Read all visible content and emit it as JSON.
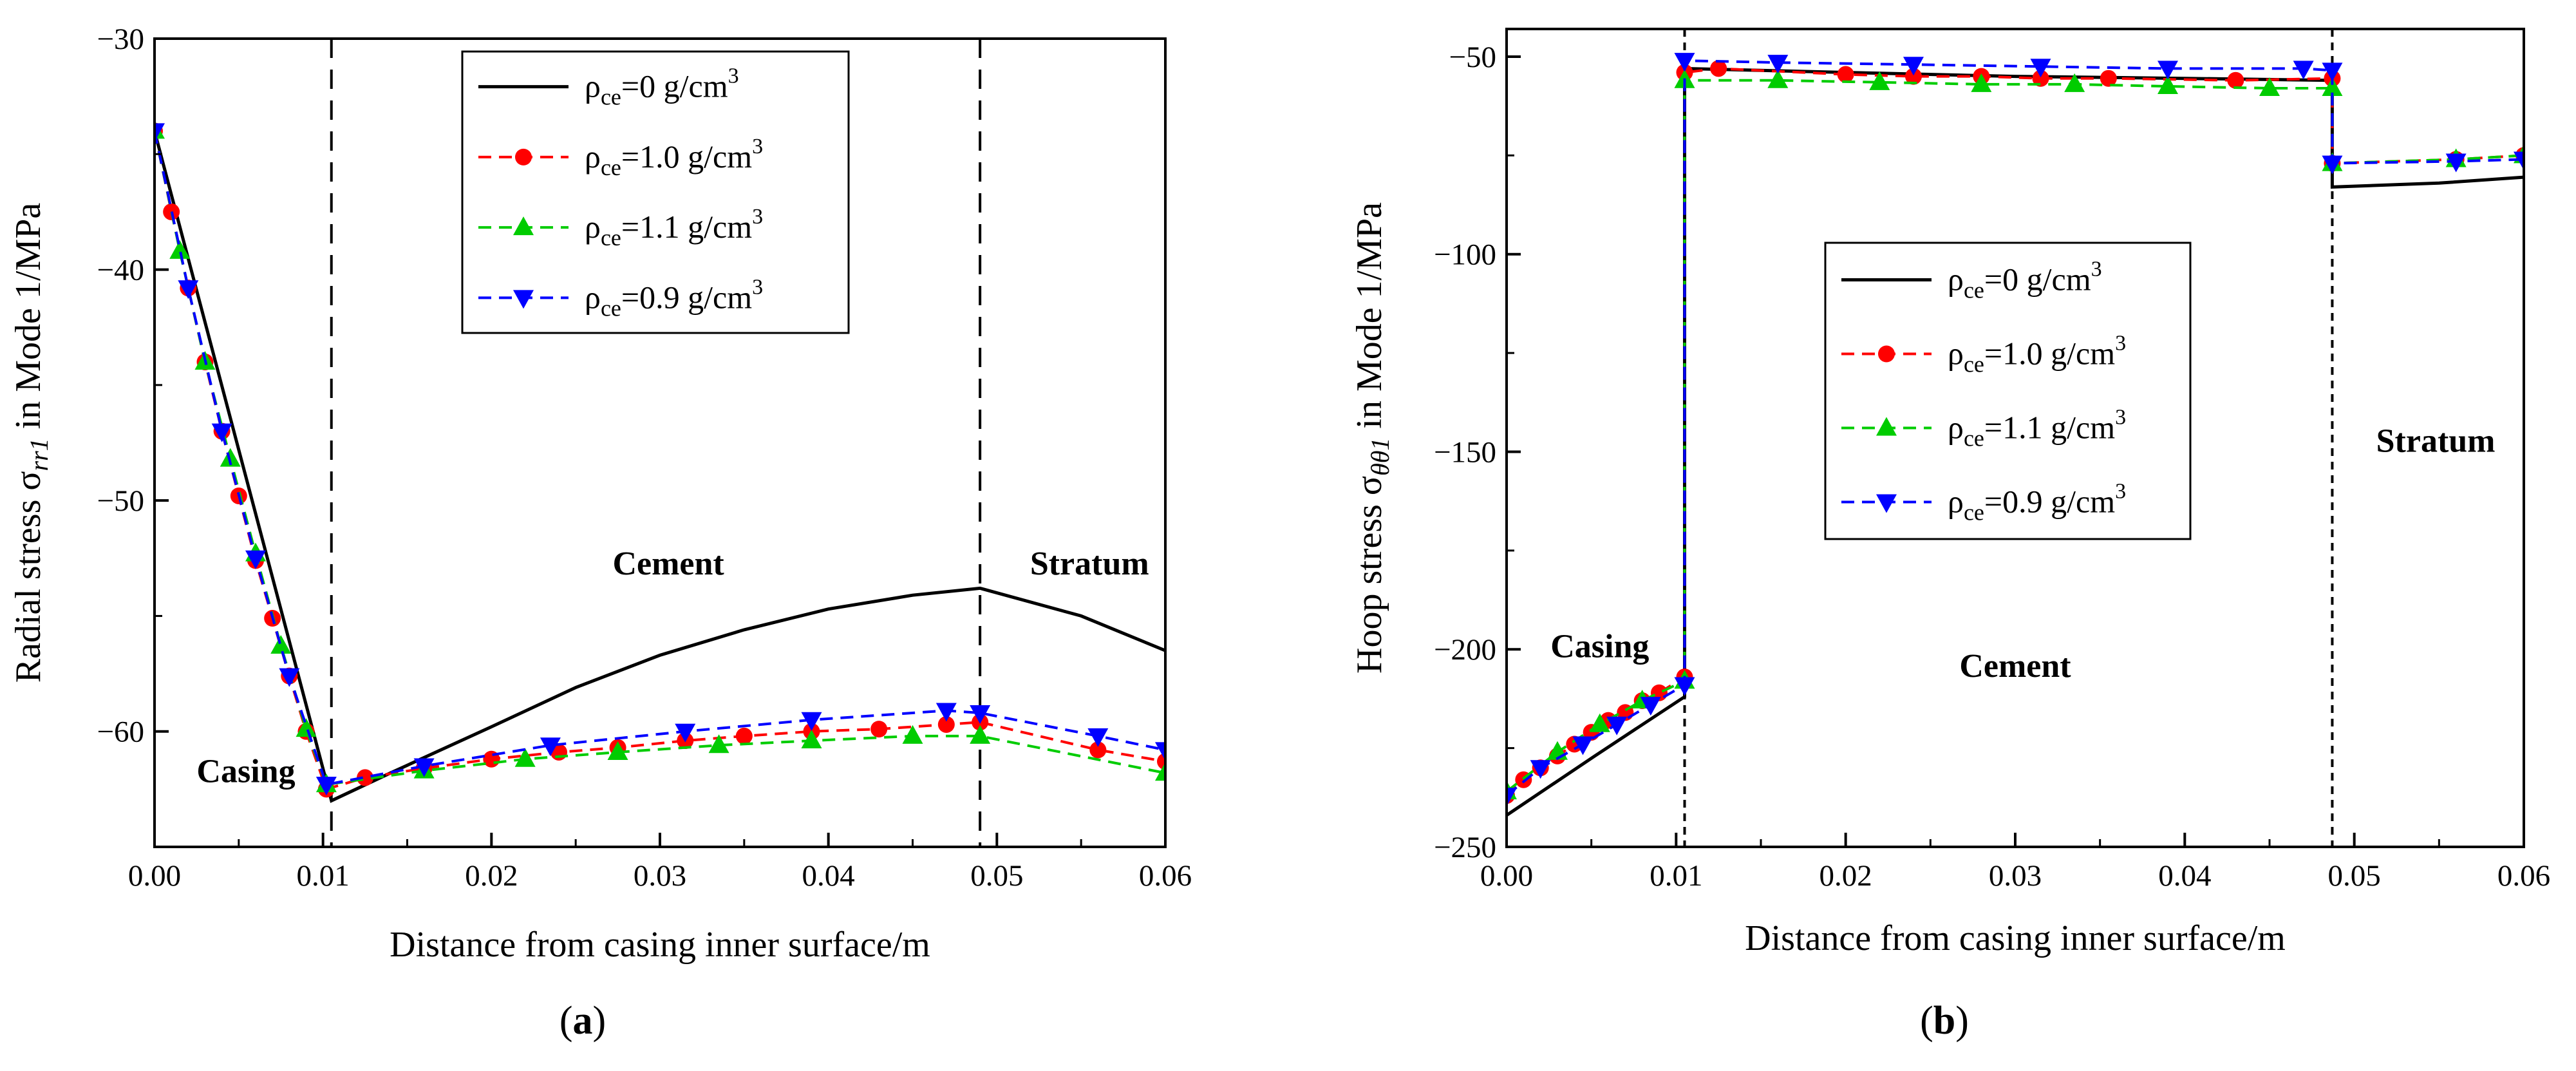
{
  "figure": {
    "panel_labels": [
      "(a)",
      "(b)"
    ],
    "panel_letters": [
      "a",
      "b"
    ]
  },
  "chart_data": [
    {
      "type": "line",
      "panel": "a",
      "ylabel_prefix": "Radial stress σ",
      "ylabel_sub": "rr1",
      "ylabel_suffix": " in Mode 1/MPa",
      "xlabel": "Distance from casing inner surface/m",
      "xlim": [
        0,
        0.06
      ],
      "ylim": [
        -65,
        -30
      ],
      "xticks": [
        0,
        0.01,
        0.02,
        0.03,
        0.04,
        0.05,
        0.06
      ],
      "xtick_labels": [
        "0.00",
        "0.01",
        "0.02",
        "0.03",
        "0.04",
        "0.05",
        "0.06"
      ],
      "yticks": [
        -60,
        -50,
        -40,
        -30
      ],
      "ytick_labels": [
        "−60",
        "−50",
        "−40",
        "−30"
      ],
      "boundaries": [
        0.0105,
        0.049
      ],
      "boundary_style": "long-dash",
      "region_labels": [
        {
          "text": "Casing",
          "x": 0.0025,
          "y": -62.2
        },
        {
          "text": "Cement",
          "x": 0.0305,
          "y": -53.2
        },
        {
          "text": "Stratum",
          "x": 0.0555,
          "y": -53.2
        }
      ],
      "legend": {
        "position": "top-center"
      },
      "series": [
        {
          "name": "0 g/cm",
          "color": "#000000",
          "dash": "solid",
          "marker": "none",
          "x": [
            0,
            0.0105,
            0.014,
            0.02,
            0.025,
            0.03,
            0.035,
            0.04,
            0.045,
            0.049,
            0.055,
            0.06
          ],
          "y": [
            -34,
            -63,
            -61.8,
            -59.8,
            -58.1,
            -56.7,
            -55.6,
            -54.7,
            -54.1,
            -53.8,
            -55.0,
            -56.5
          ]
        },
        {
          "name": "1.0 g/cm",
          "color": "#ff0000",
          "dash": "dashed",
          "marker": "circle",
          "x": [
            0,
            0.001,
            0.002,
            0.003,
            0.004,
            0.005,
            0.006,
            0.007,
            0.008,
            0.009,
            0.0102,
            0.0125,
            0.016,
            0.02,
            0.024,
            0.0275,
            0.0315,
            0.035,
            0.039,
            0.043,
            0.047,
            0.049,
            0.056,
            0.06
          ],
          "y": [
            -34,
            -37.5,
            -40.8,
            -44.0,
            -47.0,
            -49.8,
            -52.6,
            -55.1,
            -57.6,
            -60.0,
            -62.5,
            -62.0,
            -61.6,
            -61.2,
            -60.9,
            -60.7,
            -60.4,
            -60.2,
            -60.0,
            -59.9,
            -59.7,
            -59.6,
            -60.8,
            -61.3
          ]
        },
        {
          "name": "1.1 g/cm",
          "color": "#00cc00",
          "dash": "dashed",
          "marker": "triangle-up",
          "x": [
            0,
            0.0015,
            0.003,
            0.0045,
            0.006,
            0.0075,
            0.009,
            0.0102,
            0.016,
            0.022,
            0.0275,
            0.0335,
            0.039,
            0.045,
            0.049,
            0.06
          ],
          "y": [
            -34,
            -39.2,
            -44.0,
            -48.2,
            -52.3,
            -56.3,
            -59.9,
            -62.3,
            -61.7,
            -61.2,
            -60.9,
            -60.6,
            -60.4,
            -60.2,
            -60.2,
            -61.8
          ]
        },
        {
          "name": "0.9 g/cm",
          "color": "#0000ff",
          "dash": "dashed",
          "marker": "triangle-down",
          "x": [
            0,
            0.002,
            0.004,
            0.006,
            0.008,
            0.0102,
            0.016,
            0.0235,
            0.0315,
            0.039,
            0.047,
            0.049,
            0.056,
            0.06
          ],
          "y": [
            -34,
            -40.8,
            -47.0,
            -52.5,
            -57.6,
            -62.3,
            -61.5,
            -60.6,
            -60.0,
            -59.5,
            -59.1,
            -59.2,
            -60.2,
            -60.8
          ]
        }
      ]
    },
    {
      "type": "line",
      "panel": "b",
      "ylabel_prefix": "Hoop stress σ",
      "ylabel_sub": "θθ1",
      "ylabel_suffix": " in Mode 1/MPa",
      "xlabel": "Distance from casing inner surface/m",
      "xlim": [
        0,
        0.06
      ],
      "ylim": [
        -250,
        -43
      ],
      "xticks": [
        0,
        0.01,
        0.02,
        0.03,
        0.04,
        0.05,
        0.06
      ],
      "xtick_labels": [
        "0.00",
        "0.01",
        "0.02",
        "0.03",
        "0.04",
        "0.05",
        "0.06"
      ],
      "yticks": [
        -250,
        -200,
        -150,
        -100,
        -50
      ],
      "ytick_labels": [
        "−250",
        "−200",
        "−150",
        "−100",
        "−50"
      ],
      "boundaries": [
        0.0105,
        0.0487
      ],
      "boundary_style": "short-dash",
      "region_labels": [
        {
          "text": "Casing",
          "x": 0.0055,
          "y": -202
        },
        {
          "text": "Cement",
          "x": 0.03,
          "y": -207
        },
        {
          "text": "Stratum",
          "x": 0.0548,
          "y": -150
        }
      ],
      "legend": {
        "position": "center-left"
      },
      "series": [
        {
          "name": "0 g/cm",
          "color": "#000000",
          "dash": "solid",
          "marker": "none",
          "x": [
            0,
            0.0052,
            0.0105,
            0.0105,
            0.02,
            0.03,
            0.04,
            0.0487,
            0.0487,
            0.055,
            0.06
          ],
          "y": [
            -242,
            -227,
            -212,
            -53,
            -54,
            -55,
            -55.5,
            -56,
            -83,
            -82,
            -80.5
          ]
        },
        {
          "name": "1.0 g/cm",
          "color": "#ff0000",
          "dash": "dashed",
          "marker": "circle",
          "x": [
            0,
            0.001,
            0.002,
            0.003,
            0.004,
            0.005,
            0.006,
            0.007,
            0.008,
            0.009,
            0.0105,
            0.0105,
            0.0125,
            0.02,
            0.024,
            0.028,
            0.0315,
            0.0355,
            0.043,
            0.0487,
            0.0487,
            0.056,
            0.06
          ],
          "y": [
            -237,
            -233,
            -230,
            -227,
            -224,
            -221,
            -218,
            -216,
            -213,
            -211,
            -207,
            -54,
            -53,
            -54.5,
            -55,
            -55,
            -55.5,
            -55.5,
            -56,
            -55.5,
            -77,
            -76,
            -75
          ]
        },
        {
          "name": "1.1 g/cm",
          "color": "#00cc00",
          "dash": "dashed",
          "marker": "triangle-up",
          "x": [
            0,
            0.003,
            0.0055,
            0.008,
            0.0105,
            0.0105,
            0.016,
            0.022,
            0.028,
            0.0335,
            0.039,
            0.045,
            0.0487,
            0.0487,
            0.056,
            0.06
          ],
          "y": [
            -236,
            -226,
            -219,
            -213,
            -208,
            -56,
            -56,
            -56.5,
            -57,
            -57,
            -57.5,
            -58,
            -58,
            -77,
            -76,
            -75
          ]
        },
        {
          "name": "0.9 g/cm",
          "color": "#0000ff",
          "dash": "dashed",
          "marker": "triangle-down",
          "x": [
            0,
            0.002,
            0.0045,
            0.0065,
            0.0085,
            0.0105,
            0.0105,
            0.016,
            0.024,
            0.0315,
            0.039,
            0.047,
            0.0487,
            0.0487,
            0.056,
            0.06
          ],
          "y": [
            -237,
            -230,
            -224,
            -219,
            -214,
            -209,
            -51,
            -51.5,
            -52,
            -52.5,
            -53,
            -53,
            -53.5,
            -77,
            -76.5,
            -76
          ]
        }
      ]
    }
  ]
}
